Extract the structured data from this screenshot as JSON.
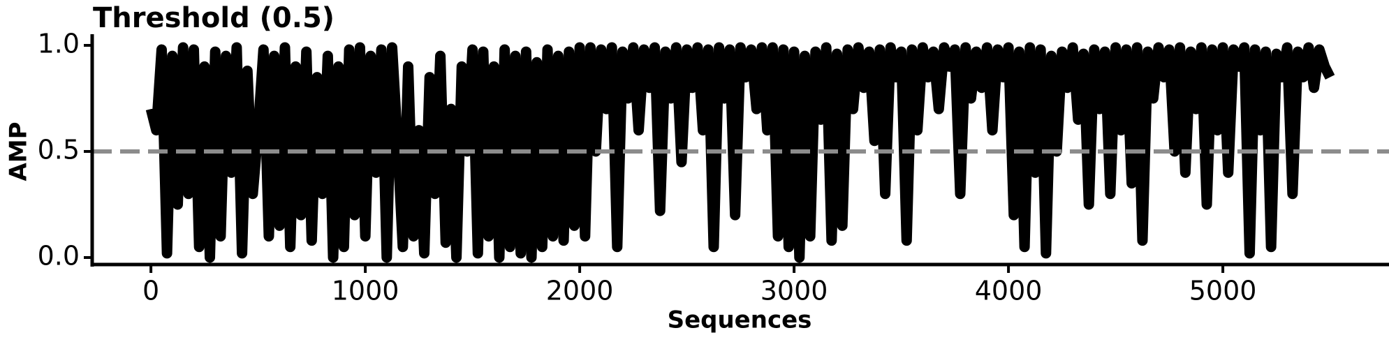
{
  "chart_data": {
    "type": "line",
    "title": "Threshold (0.5)",
    "x_label": "Sequences",
    "y_label": "AMP",
    "color": "#000000",
    "threshold": 0.5,
    "threshold_color": "#8c8c8c",
    "xlim": [
      -274,
      5775
    ],
    "ylim": [
      -0.033,
      1.046
    ],
    "xticks": [
      0,
      1000,
      2000,
      3000,
      4000,
      5000
    ],
    "yticks": [
      {
        "value": 0,
        "label": "0.0"
      },
      {
        "value": 0.5,
        "label": "0.5"
      },
      {
        "value": 1,
        "label": "1.0"
      }
    ],
    "x": [
      0,
      25,
      50,
      75,
      100,
      125,
      150,
      175,
      200,
      225,
      250,
      275,
      300,
      325,
      350,
      375,
      400,
      425,
      450,
      475,
      500,
      525,
      550,
      575,
      600,
      625,
      650,
      675,
      700,
      725,
      750,
      775,
      800,
      825,
      850,
      875,
      900,
      925,
      950,
      975,
      1000,
      1025,
      1050,
      1075,
      1100,
      1125,
      1150,
      1175,
      1200,
      1225,
      1250,
      1275,
      1300,
      1325,
      1350,
      1375,
      1400,
      1425,
      1450,
      1475,
      1500,
      1525,
      1550,
      1575,
      1600,
      1625,
      1650,
      1675,
      1700,
      1725,
      1750,
      1775,
      1800,
      1825,
      1850,
      1875,
      1900,
      1925,
      1950,
      1975,
      2000,
      2025,
      2050,
      2075,
      2100,
      2125,
      2150,
      2175,
      2200,
      2225,
      2250,
      2275,
      2300,
      2325,
      2350,
      2375,
      2400,
      2425,
      2450,
      2475,
      2500,
      2525,
      2550,
      2575,
      2600,
      2625,
      2650,
      2675,
      2700,
      2725,
      2750,
      2775,
      2800,
      2825,
      2850,
      2875,
      2900,
      2925,
      2950,
      2975,
      3000,
      3025,
      3050,
      3075,
      3100,
      3125,
      3150,
      3175,
      3200,
      3225,
      3250,
      3275,
      3300,
      3325,
      3350,
      3375,
      3400,
      3425,
      3450,
      3475,
      3500,
      3525,
      3550,
      3575,
      3600,
      3625,
      3650,
      3675,
      3700,
      3725,
      3750,
      3775,
      3800,
      3825,
      3850,
      3875,
      3900,
      3925,
      3950,
      3975,
      4000,
      4025,
      4050,
      4075,
      4100,
      4125,
      4150,
      4175,
      4200,
      4225,
      4250,
      4275,
      4300,
      4325,
      4350,
      4375,
      4400,
      4425,
      4450,
      4475,
      4500,
      4525,
      4550,
      4575,
      4600,
      4625,
      4650,
      4675,
      4700,
      4725,
      4750,
      4775,
      4800,
      4825,
      4850,
      4875,
      4900,
      4925,
      4950,
      4975,
      5000,
      5025,
      5050,
      5075,
      5100,
      5125,
      5150,
      5175,
      5200,
      5225,
      5250,
      5275,
      5300,
      5325,
      5350,
      5375,
      5400,
      5425,
      5450,
      5475,
      5500
    ],
    "values": [
      0.7,
      0.6,
      0.98,
      0.02,
      0.95,
      0.25,
      0.99,
      0.3,
      0.98,
      0.05,
      0.9,
      0.0,
      0.97,
      0.1,
      0.95,
      0.4,
      0.99,
      0.02,
      0.88,
      0.3,
      0.6,
      0.98,
      0.1,
      0.95,
      0.15,
      0.99,
      0.05,
      0.9,
      0.2,
      0.97,
      0.08,
      0.85,
      0.3,
      0.95,
      0.0,
      0.9,
      0.05,
      0.98,
      0.2,
      0.99,
      0.1,
      0.95,
      0.4,
      0.98,
      0.0,
      0.99,
      0.55,
      0.05,
      0.9,
      0.1,
      0.6,
      0.02,
      0.85,
      0.3,
      0.95,
      0.07,
      0.7,
      0.0,
      0.9,
      0.5,
      0.98,
      0.02,
      0.97,
      0.1,
      0.9,
      0.0,
      0.98,
      0.05,
      0.95,
      0.02,
      0.97,
      0.0,
      0.92,
      0.05,
      0.98,
      0.1,
      0.95,
      0.08,
      0.97,
      0.15,
      0.99,
      0.1,
      0.99,
      0.5,
      0.98,
      0.7,
      0.99,
      0.05,
      0.97,
      0.75,
      0.99,
      0.6,
      0.98,
      0.8,
      0.99,
      0.22,
      0.97,
      0.75,
      0.99,
      0.45,
      0.98,
      0.8,
      0.99,
      0.6,
      0.98,
      0.05,
      0.99,
      0.75,
      0.98,
      0.2,
      0.99,
      0.85,
      0.98,
      0.7,
      0.99,
      0.6,
      0.99,
      0.1,
      0.98,
      0.05,
      0.97,
      0.0,
      0.95,
      0.1,
      0.97,
      0.65,
      0.99,
      0.08,
      0.96,
      0.15,
      0.98,
      0.7,
      0.99,
      0.8,
      0.97,
      0.55,
      0.98,
      0.3,
      0.99,
      0.85,
      0.97,
      0.08,
      0.98,
      0.6,
      0.99,
      0.85,
      0.97,
      0.7,
      0.99,
      0.9,
      0.98,
      0.3,
      0.99,
      0.75,
      0.97,
      0.8,
      0.99,
      0.6,
      0.98,
      0.85,
      0.99,
      0.2,
      0.97,
      0.05,
      0.99,
      0.4,
      0.98,
      0.02,
      0.95,
      0.5,
      0.97,
      0.8,
      0.99,
      0.65,
      0.96,
      0.25,
      0.98,
      0.7,
      0.97,
      0.3,
      0.99,
      0.6,
      0.98,
      0.35,
      0.99,
      0.08,
      0.97,
      0.75,
      0.99,
      0.85,
      0.98,
      0.5,
      0.99,
      0.4,
      0.97,
      0.7,
      0.99,
      0.25,
      0.98,
      0.6,
      0.99,
      0.4,
      0.98,
      0.9,
      0.99,
      0.02,
      0.98,
      0.6,
      0.97,
      0.05,
      0.96,
      0.85,
      0.99,
      0.3,
      0.97,
      0.85,
      0.99,
      0.8,
      0.98,
      0.9,
      0.85
    ]
  }
}
